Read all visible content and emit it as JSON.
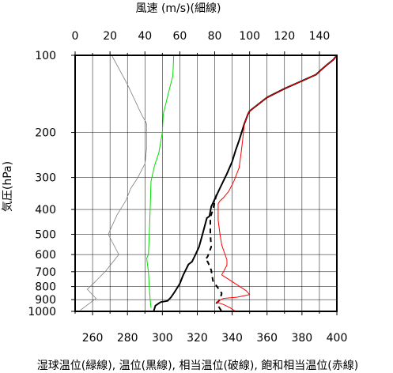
{
  "chart_data": {
    "type": "line",
    "top_axis": {
      "label": "風速 (m/s)(細線)",
      "range": [
        0,
        150
      ],
      "ticks": [
        0,
        20,
        40,
        60,
        80,
        100,
        120,
        140
      ],
      "tick_labels": [
        "0",
        "20",
        "40",
        "60",
        "80",
        "100",
        "120",
        "140"
      ]
    },
    "bottom_axis": {
      "label": "湿球温位(緑線), 温位(黒線), 相当温位(破線), 飽和相当温位(赤線)",
      "range": [
        250,
        400
      ],
      "ticks": [
        260,
        280,
        300,
        320,
        340,
        360,
        380,
        400
      ],
      "tick_labels": [
        "260",
        "280",
        "300",
        "320",
        "340",
        "360",
        "380",
        "400"
      ]
    },
    "y_axis": {
      "label": "気圧(hPa)",
      "scale": "log",
      "reversed": true,
      "range": [
        1000,
        100
      ],
      "ticks": [
        100,
        200,
        300,
        400,
        500,
        600,
        700,
        800,
        900,
        1000
      ],
      "tick_labels": [
        "100",
        "200",
        "300",
        "400",
        "500",
        "600",
        "700",
        "800",
        "900",
        "1000"
      ]
    },
    "grid": true,
    "series": [
      {
        "key": "wind_speed",
        "axis": "top",
        "color": "#808080",
        "points": [
          [
            21,
            100
          ],
          [
            30,
            130
          ],
          [
            38,
            170
          ],
          [
            41,
            185
          ],
          [
            41,
            230
          ],
          [
            40,
            265
          ],
          [
            36,
            300
          ],
          [
            32,
            330
          ],
          [
            29,
            370
          ],
          [
            24,
            420
          ],
          [
            19,
            500
          ],
          [
            25,
            600
          ],
          [
            18,
            690
          ],
          [
            12,
            760
          ],
          [
            7,
            820
          ],
          [
            12,
            890
          ],
          [
            3,
            990
          ]
        ]
      },
      {
        "key": "wet_bulb_potential_temperature",
        "axis": "bottom",
        "color": "#00dd00",
        "points": [
          [
            306.5,
            100
          ],
          [
            306,
            120
          ],
          [
            303.5,
            140
          ],
          [
            300.5,
            170
          ],
          [
            300,
            200
          ],
          [
            298,
            240
          ],
          [
            295.5,
            270
          ],
          [
            293.5,
            310
          ],
          [
            293,
            400
          ],
          [
            292.5,
            500
          ],
          [
            292,
            600
          ],
          [
            291,
            620
          ],
          [
            292,
            700
          ],
          [
            292.5,
            800
          ],
          [
            293,
            900
          ],
          [
            293.5,
            970
          ]
        ]
      },
      {
        "key": "potential_temperature",
        "axis": "bottom",
        "color": "#000000",
        "points": [
          [
            400,
            100
          ],
          [
            398,
            104
          ],
          [
            395,
            108
          ],
          [
            391,
            114
          ],
          [
            388,
            119
          ],
          [
            370,
            135
          ],
          [
            360,
            146
          ],
          [
            350,
            165
          ],
          [
            349,
            170
          ],
          [
            347,
            185
          ],
          [
            344,
            215
          ],
          [
            342,
            235
          ],
          [
            340,
            260
          ],
          [
            337,
            290
          ],
          [
            333,
            330
          ],
          [
            330,
            365
          ],
          [
            328,
            390
          ],
          [
            327,
            425
          ],
          [
            325.5,
            432
          ],
          [
            323,
            500
          ],
          [
            321,
            560
          ],
          [
            319,
            600
          ],
          [
            317,
            640
          ],
          [
            315,
            655
          ],
          [
            312,
            720
          ],
          [
            310,
            780
          ],
          [
            307,
            840
          ],
          [
            305,
            880
          ],
          [
            303,
            910
          ],
          [
            299,
            920
          ],
          [
            296,
            950
          ],
          [
            295,
            1000
          ]
        ]
      },
      {
        "key": "equivalent_potential_temperature",
        "axis": "bottom",
        "color": "#000000",
        "dashed": true,
        "points": [
          [
            331,
            350
          ],
          [
            329,
            400
          ],
          [
            327.5,
            430
          ],
          [
            327.5,
            500
          ],
          [
            328,
            560
          ],
          [
            326,
            610
          ],
          [
            324.5,
            630
          ],
          [
            326,
            640
          ],
          [
            328,
            690
          ],
          [
            329,
            760
          ],
          [
            334,
            850
          ],
          [
            333,
            900
          ],
          [
            331,
            930
          ],
          [
            334,
            1000
          ]
        ]
      },
      {
        "key": "saturated_equivalent_potential_temperature",
        "axis": "bottom",
        "color": "#ff0000",
        "points": [
          [
            400,
            100
          ],
          [
            398,
            104
          ],
          [
            395,
            108
          ],
          [
            391,
            114
          ],
          [
            388,
            119
          ],
          [
            370,
            135
          ],
          [
            360,
            146
          ],
          [
            350,
            165
          ],
          [
            349,
            170
          ],
          [
            347,
            185
          ],
          [
            346,
            215
          ],
          [
            345,
            245
          ],
          [
            344,
            275
          ],
          [
            341,
            310
          ],
          [
            338,
            340
          ],
          [
            335,
            360
          ],
          [
            333,
            370
          ],
          [
            332,
            380
          ],
          [
            332,
            440
          ],
          [
            333,
            500
          ],
          [
            334,
            550
          ],
          [
            337,
            630
          ],
          [
            337,
            660
          ],
          [
            334,
            720
          ],
          [
            348,
            830
          ],
          [
            350,
            860
          ],
          [
            343,
            880
          ],
          [
            335,
            890
          ],
          [
            331,
            920
          ],
          [
            335,
            940
          ],
          [
            339,
            970
          ],
          [
            342,
            1000
          ]
        ]
      }
    ]
  }
}
